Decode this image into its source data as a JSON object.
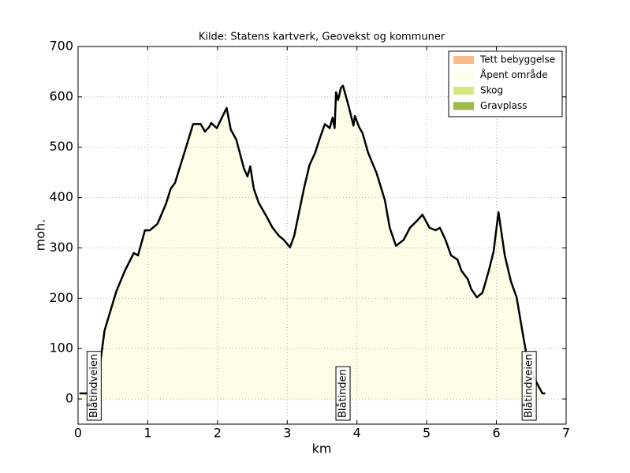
{
  "chart_data": {
    "type": "area",
    "title": "Kilde: Statens kartverk, Geovekst og kommuner",
    "xlabel": "km",
    "ylabel": "moh.",
    "xlim": [
      0,
      7
    ],
    "xticks": [
      0,
      1,
      2,
      3,
      4,
      5,
      6,
      7
    ],
    "ylim": [
      -50,
      700
    ],
    "yticks": [
      0,
      100,
      200,
      300,
      400,
      500,
      600,
      700
    ],
    "grid": true,
    "line_color": "#000000",
    "fill_color": "#fdfde8",
    "x": [
      0.02,
      0.24,
      0.32,
      0.38,
      0.55,
      0.67,
      0.8,
      0.86,
      0.96,
      1.03,
      1.14,
      1.26,
      1.33,
      1.39,
      1.54,
      1.65,
      1.76,
      1.82,
      1.88,
      1.91,
      1.99,
      2.13,
      2.19,
      2.27,
      2.38,
      2.43,
      2.47,
      2.52,
      2.59,
      2.7,
      2.79,
      2.88,
      2.95,
      3.04,
      3.1,
      3.24,
      3.32,
      3.4,
      3.46,
      3.54,
      3.61,
      3.65,
      3.68,
      3.7,
      3.73,
      3.77,
      3.8,
      3.88,
      3.95,
      3.97,
      4.03,
      4.08,
      4.16,
      4.28,
      4.4,
      4.47,
      4.56,
      4.67,
      4.76,
      4.87,
      4.94,
      5.04,
      5.13,
      5.19,
      5.27,
      5.35,
      5.44,
      5.5,
      5.59,
      5.64,
      5.72,
      5.8,
      5.89,
      5.96,
      6.03,
      6.12,
      6.21,
      6.29,
      6.38,
      6.46,
      6.57,
      6.66,
      6.7
    ],
    "values": [
      11,
      11,
      74,
      136,
      214,
      254,
      290,
      285,
      335,
      335,
      348,
      387,
      418,
      429,
      496,
      546,
      546,
      531,
      540,
      548,
      538,
      578,
      535,
      515,
      457,
      442,
      462,
      418,
      390,
      363,
      340,
      324,
      316,
      301,
      324,
      418,
      465,
      489,
      515,
      546,
      538,
      559,
      538,
      609,
      594,
      618,
      622,
      582,
      543,
      562,
      540,
      528,
      489,
      449,
      395,
      340,
      304,
      316,
      340,
      355,
      366,
      340,
      335,
      340,
      316,
      285,
      277,
      254,
      238,
      218,
      202,
      211,
      254,
      293,
      371,
      285,
      233,
      202,
      128,
      66,
      34,
      11,
      11
    ],
    "annotations": [
      {
        "text": "Blåtindveien",
        "x": 0.23
      },
      {
        "text": "Blåtinden",
        "x": 3.8
      },
      {
        "text": "Blåtindveien",
        "x": 6.47
      }
    ],
    "legend_position": "upper right",
    "legend": [
      {
        "label": "Tett bebyggelse",
        "color": "#f7bb8c"
      },
      {
        "label": "Åpent område",
        "color": "#fdfde8"
      },
      {
        "label": "Skog",
        "color": "#d5e882"
      },
      {
        "label": "Gravplass",
        "color": "#9cba4a"
      }
    ]
  }
}
